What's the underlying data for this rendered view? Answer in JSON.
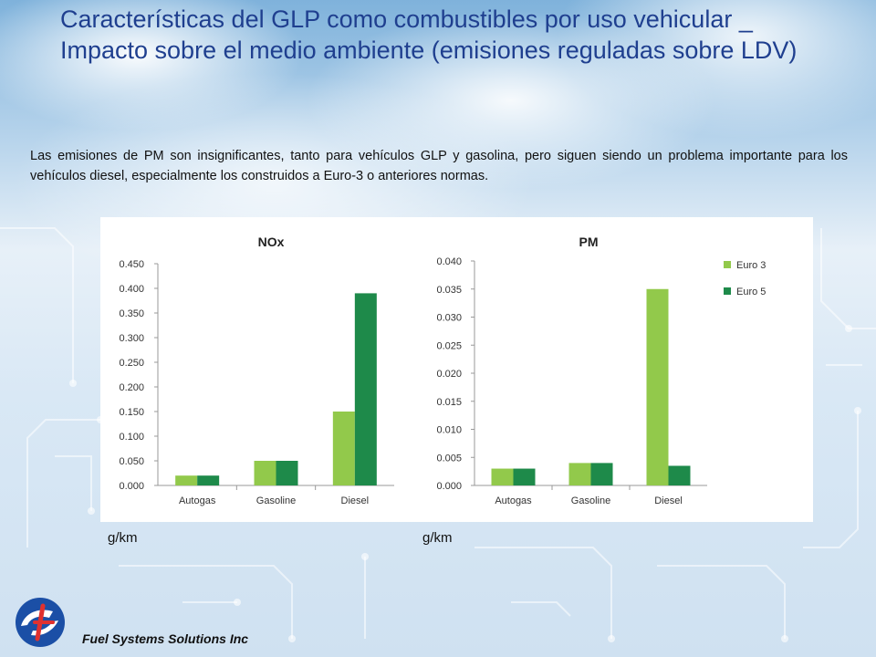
{
  "slide": {
    "title": "Características del GLP como combustibles por uso vehicular _ Impacto sobre el medio ambiente (emisiones reguladas sobre LDV)",
    "intro": "Las emisiones de PM son insignificantes, tanto para vehículos GLP y gasolina, pero siguen siendo un problema importante para los vehículos diesel, especialmente los construidos a Euro-3 o anteriores normas.",
    "unit_left": "g/km",
    "unit_right": "g/km",
    "company": "Fuel Systems Solutions Inc",
    "logo_icon": "fuel-systems-logo-icon"
  },
  "colors": {
    "title": "#1f3f8f",
    "euro3": "#92c94b",
    "euro5": "#1e8a4a"
  },
  "chart_data": [
    {
      "type": "bar",
      "title": "NOx",
      "xlabel": "",
      "ylabel": "",
      "categories": [
        "Autogas",
        "Gasoline",
        "Diesel"
      ],
      "series": [
        {
          "name": "Euro 3",
          "values": [
            0.02,
            0.05,
            0.15
          ]
        },
        {
          "name": "Euro 5",
          "values": [
            0.02,
            0.05,
            0.39
          ]
        }
      ],
      "ylim": [
        0,
        0.45
      ],
      "yticks": [
        "0.000",
        "0.050",
        "0.100",
        "0.150",
        "0.200",
        "0.250",
        "0.300",
        "0.350",
        "0.400",
        "0.450"
      ],
      "grid": false,
      "legend": "none"
    },
    {
      "type": "bar",
      "title": "PM",
      "xlabel": "",
      "ylabel": "",
      "categories": [
        "Autogas",
        "Gasoline",
        "Diesel"
      ],
      "series": [
        {
          "name": "Euro 3",
          "values": [
            0.003,
            0.004,
            0.035
          ]
        },
        {
          "name": "Euro 5",
          "values": [
            0.003,
            0.004,
            0.0035
          ]
        }
      ],
      "ylim": [
        0,
        0.04
      ],
      "yticks": [
        "0.000",
        "0.005",
        "0.010",
        "0.015",
        "0.020",
        "0.025",
        "0.030",
        "0.035",
        "0.040"
      ],
      "grid": false,
      "legend": "right"
    }
  ]
}
